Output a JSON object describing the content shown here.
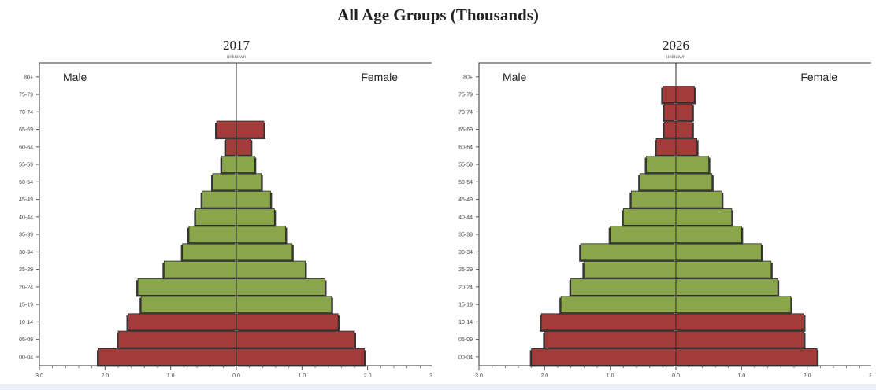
{
  "title": "All Age Groups (Thousands)",
  "colors": {
    "green": "#8aa64a",
    "red": "#a33b3b",
    "shadow": "#3a3a3a",
    "frame": "#555555",
    "background": "#ffffff"
  },
  "chart_data": [
    {
      "type": "bar",
      "orientation": "horizontal-pyramid",
      "title": "2017",
      "subtitle": "unknown",
      "left_label": "Male",
      "right_label": "Female",
      "categories": [
        "00-04",
        "05-09",
        "10-14",
        "15-19",
        "20-24",
        "25-29",
        "30-34",
        "35-39",
        "40-44",
        "45-49",
        "50-54",
        "55-59",
        "60-64",
        "65-69",
        "70-74",
        "75-79",
        "80+"
      ],
      "x_ticks": [
        "3.0",
        "2.0",
        "1.0",
        "0.0",
        "1.0",
        "2.0",
        "3.0"
      ],
      "xlim": [
        -3.0,
        3.0
      ],
      "grid": false,
      "series": [
        {
          "name": "Male",
          "values": [
            2.1,
            1.8,
            1.65,
            1.45,
            1.5,
            1.1,
            0.82,
            0.72,
            0.62,
            0.52,
            0.36,
            0.22,
            0.16,
            0.3,
            null,
            null,
            null
          ]
        },
        {
          "name": "Female",
          "values": [
            1.95,
            1.8,
            1.55,
            1.45,
            1.35,
            1.05,
            0.85,
            0.75,
            0.58,
            0.52,
            0.38,
            0.28,
            0.22,
            0.42,
            null,
            null,
            null
          ]
        }
      ],
      "highlight_rows": [
        "00-04",
        "05-09",
        "10-14",
        "60-64",
        "65-69"
      ]
    },
    {
      "type": "bar",
      "orientation": "horizontal-pyramid",
      "title": "2026",
      "subtitle": "unknown",
      "left_label": "Male",
      "right_label": "Female",
      "categories": [
        "00-04",
        "05-09",
        "10-14",
        "15-19",
        "20-24",
        "25-29",
        "30-34",
        "35-39",
        "40-44",
        "45-49",
        "50-54",
        "55-59",
        "60-64",
        "65-69",
        "70-74",
        "75-79",
        "80+"
      ],
      "x_ticks": [
        "3.0",
        "2.0",
        "1.0",
        "0.0",
        "1.0",
        "2.0",
        "3.0"
      ],
      "xlim": [
        -3.0,
        3.0
      ],
      "grid": false,
      "series": [
        {
          "name": "Male",
          "values": [
            2.2,
            2.0,
            2.05,
            1.75,
            1.6,
            1.4,
            1.45,
            1.0,
            0.8,
            0.68,
            0.55,
            0.45,
            0.3,
            0.18,
            0.18,
            0.2,
            null
          ]
        },
        {
          "name": "Female",
          "values": [
            2.15,
            1.95,
            1.95,
            1.75,
            1.55,
            1.45,
            1.3,
            1.0,
            0.85,
            0.7,
            0.55,
            0.5,
            0.32,
            0.25,
            0.25,
            0.28,
            null
          ]
        }
      ],
      "highlight_rows": [
        "00-04",
        "05-09",
        "10-14",
        "60-64",
        "65-69",
        "70-74",
        "75-79"
      ]
    }
  ]
}
